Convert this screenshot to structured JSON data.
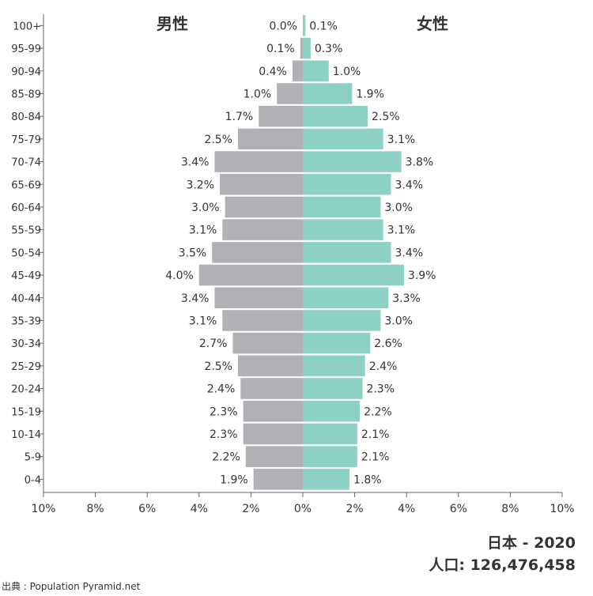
{
  "header": {
    "male_label": "男性",
    "female_label": "女性"
  },
  "footer": {
    "country_year": "日本 - 2020",
    "population": "人口: 126,476,458",
    "source": "出典 : Population Pyramid.net"
  },
  "colors": {
    "male": "#b1b0b5",
    "female": "#8dd1c4",
    "axis": "#666666",
    "text": "#333333"
  },
  "chart_data": {
    "type": "bar",
    "orientation": "horizontal-diverging",
    "categories": [
      "100+",
      "95-99",
      "90-94",
      "85-89",
      "80-84",
      "75-79",
      "70-74",
      "65-69",
      "60-64",
      "55-59",
      "50-54",
      "45-49",
      "40-44",
      "35-39",
      "30-34",
      "25-29",
      "20-24",
      "15-19",
      "10-14",
      "5-9",
      "0-4"
    ],
    "series": [
      {
        "name": "男性",
        "values": [
          0.0,
          0.1,
          0.4,
          1.0,
          1.7,
          2.5,
          3.4,
          3.2,
          3.0,
          3.1,
          3.5,
          4.0,
          3.4,
          3.1,
          2.7,
          2.5,
          2.4,
          2.3,
          2.3,
          2.2,
          1.9
        ],
        "labels": [
          "0.0%",
          "0.1%",
          "0.4%",
          "1.0%",
          "1.7%",
          "2.5%",
          "3.4%",
          "3.2%",
          "3.0%",
          "3.1%",
          "3.5%",
          "4.0%",
          "3.4%",
          "3.1%",
          "2.7%",
          "2.5%",
          "2.4%",
          "2.3%",
          "2.3%",
          "2.2%",
          "1.9%"
        ]
      },
      {
        "name": "女性",
        "values": [
          0.1,
          0.3,
          1.0,
          1.9,
          2.5,
          3.1,
          3.8,
          3.4,
          3.0,
          3.1,
          3.4,
          3.9,
          3.3,
          3.0,
          2.6,
          2.4,
          2.3,
          2.2,
          2.1,
          2.1,
          1.8
        ],
        "labels": [
          "0.1%",
          "0.3%",
          "1.0%",
          "1.9%",
          "2.5%",
          "3.1%",
          "3.8%",
          "3.4%",
          "3.0%",
          "3.1%",
          "3.4%",
          "3.9%",
          "3.3%",
          "3.0%",
          "2.6%",
          "2.4%",
          "2.3%",
          "2.2%",
          "2.1%",
          "2.1%",
          "1.8%"
        ]
      }
    ],
    "x_ticks": [
      "10%",
      "8%",
      "6%",
      "4%",
      "2%",
      "0%",
      "2%",
      "4%",
      "6%",
      "8%",
      "10%"
    ],
    "xlim": [
      -10,
      10
    ]
  }
}
